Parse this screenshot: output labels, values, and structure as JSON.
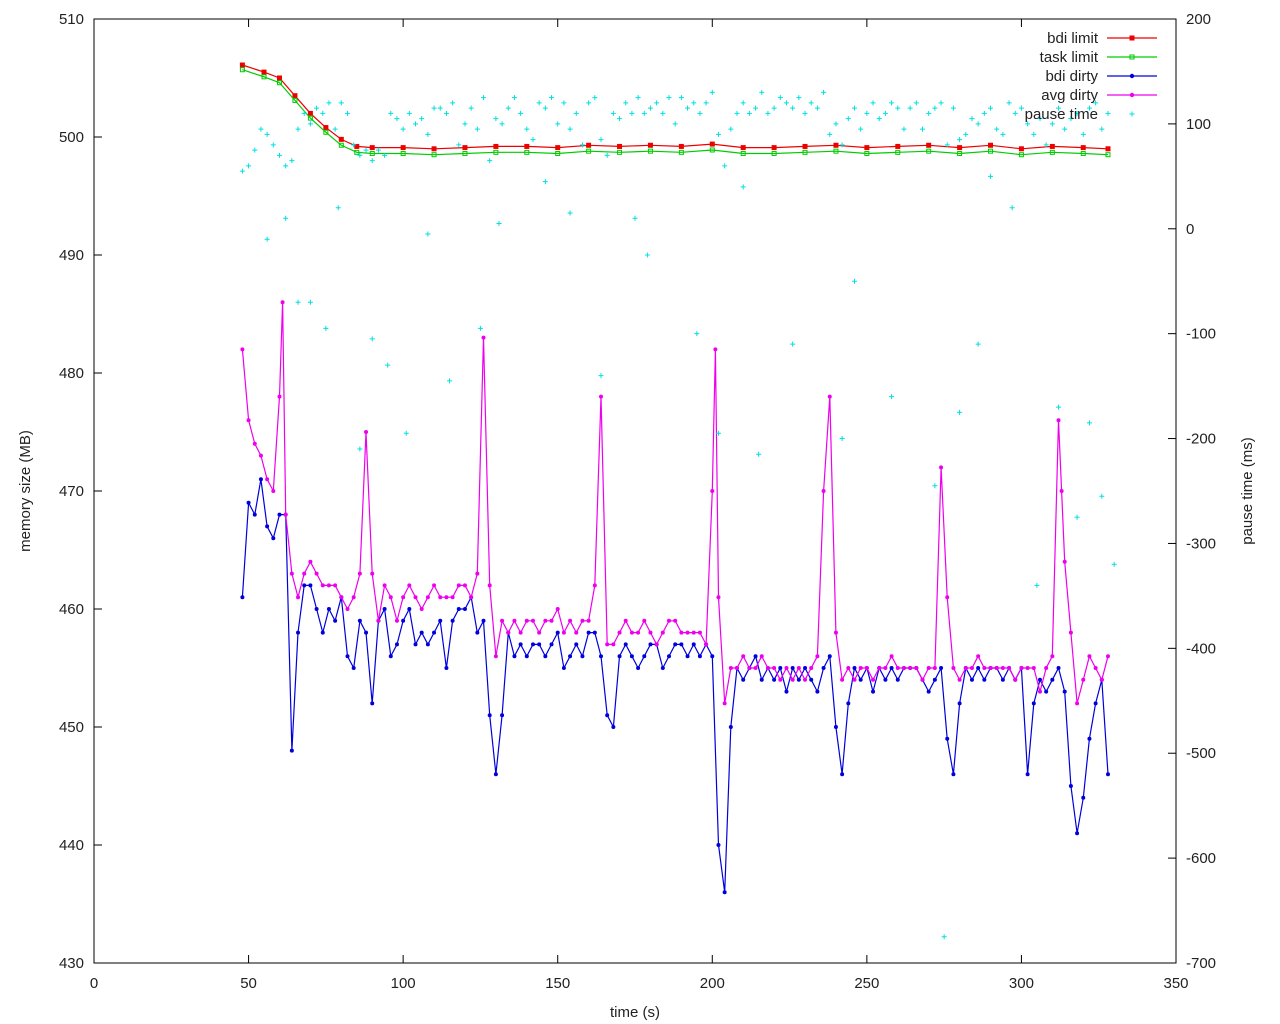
{
  "chart_data": {
    "type": "line",
    "title": "",
    "xlabel": "time (s)",
    "ylabel": "memory size (MB)",
    "y2label": "pause time (ms)",
    "xlim": [
      0,
      350
    ],
    "ylim": [
      430,
      510
    ],
    "y2lim": [
      -700,
      200
    ],
    "x_ticks": [
      "0",
      "50",
      "100",
      "150",
      "200",
      "250",
      "300",
      "350"
    ],
    "y_ticks": [
      "430",
      "440",
      "450",
      "460",
      "470",
      "480",
      "490",
      "500",
      "510"
    ],
    "y2_ticks": [
      "-700",
      "-600",
      "-500",
      "-400",
      "-300",
      "-200",
      "-100",
      "0",
      "100",
      "200"
    ],
    "grid": false,
    "legend_position": "top-right",
    "legend": [
      "bdi limit",
      "task limit",
      "bdi dirty",
      "avg dirty",
      "pause time"
    ],
    "series": [
      {
        "name": "bdi limit",
        "axis": "left",
        "style": "linespoints",
        "color": "#ee0000",
        "x": [
          48,
          55,
          60,
          65,
          70,
          75,
          80,
          85,
          90,
          100,
          110,
          120,
          130,
          140,
          150,
          160,
          170,
          180,
          190,
          200,
          210,
          220,
          230,
          240,
          250,
          260,
          270,
          280,
          290,
          300,
          310,
          320,
          328
        ],
        "values": [
          506.1,
          505.5,
          505.0,
          503.5,
          502.0,
          500.8,
          499.8,
          499.2,
          499.1,
          499.1,
          499.0,
          499.1,
          499.2,
          499.2,
          499.1,
          499.3,
          499.2,
          499.3,
          499.2,
          499.4,
          499.1,
          499.1,
          499.2,
          499.3,
          499.1,
          499.2,
          499.3,
          499.1,
          499.3,
          499.0,
          499.2,
          499.1,
          499.0
        ]
      },
      {
        "name": "task limit",
        "axis": "left",
        "style": "linespoints",
        "color": "#00cc00",
        "x": [
          48,
          55,
          60,
          65,
          70,
          75,
          80,
          85,
          90,
          100,
          110,
          120,
          130,
          140,
          150,
          160,
          170,
          180,
          190,
          200,
          210,
          220,
          230,
          240,
          250,
          260,
          270,
          280,
          290,
          300,
          310,
          320,
          328
        ],
        "values": [
          505.7,
          505.1,
          504.6,
          503.1,
          501.6,
          500.4,
          499.3,
          498.7,
          498.6,
          498.6,
          498.5,
          498.6,
          498.7,
          498.7,
          498.6,
          498.8,
          498.7,
          498.8,
          498.7,
          498.9,
          498.6,
          498.6,
          498.7,
          498.8,
          498.6,
          498.7,
          498.8,
          498.6,
          498.8,
          498.5,
          498.7,
          498.6,
          498.5
        ]
      },
      {
        "name": "bdi dirty",
        "axis": "left",
        "style": "linespoints",
        "color": "#0000dd",
        "x": [
          48,
          50,
          52,
          54,
          56,
          58,
          60,
          62,
          64,
          66,
          68,
          70,
          72,
          74,
          76,
          78,
          80,
          82,
          84,
          86,
          88,
          90,
          92,
          94,
          96,
          98,
          100,
          102,
          104,
          106,
          108,
          110,
          112,
          114,
          116,
          118,
          120,
          122,
          124,
          126,
          128,
          130,
          132,
          134,
          136,
          138,
          140,
          142,
          144,
          146,
          148,
          150,
          152,
          154,
          156,
          158,
          160,
          162,
          164,
          166,
          168,
          170,
          172,
          174,
          176,
          178,
          180,
          182,
          184,
          186,
          188,
          190,
          192,
          194,
          196,
          198,
          200,
          202,
          204,
          206,
          208,
          210,
          212,
          214,
          216,
          218,
          220,
          222,
          224,
          226,
          228,
          230,
          232,
          234,
          236,
          238,
          240,
          242,
          244,
          246,
          248,
          250,
          252,
          254,
          256,
          258,
          260,
          262,
          264,
          266,
          268,
          270,
          272,
          274,
          276,
          278,
          280,
          282,
          284,
          286,
          288,
          290,
          292,
          294,
          296,
          298,
          300,
          302,
          304,
          306,
          308,
          310,
          312,
          314,
          316,
          318,
          320,
          322,
          324,
          326,
          328
        ],
        "values": [
          461,
          469,
          468,
          471,
          467,
          466,
          468,
          468,
          448,
          458,
          462,
          462,
          460,
          458,
          460,
          459,
          461,
          456,
          455,
          459,
          458,
          452,
          459,
          460,
          456,
          457,
          459,
          460,
          457,
          458,
          457,
          458,
          459,
          455,
          459,
          460,
          460,
          461,
          458,
          459,
          451,
          446,
          451,
          458,
          456,
          457,
          456,
          457,
          457,
          456,
          457,
          458,
          455,
          456,
          457,
          456,
          458,
          458,
          456,
          451,
          450,
          456,
          457,
          456,
          455,
          456,
          457,
          457,
          455,
          456,
          457,
          457,
          456,
          457,
          456,
          457,
          456,
          440,
          436,
          450,
          455,
          454,
          455,
          456,
          454,
          455,
          454,
          455,
          453,
          455,
          454,
          455,
          454,
          453,
          455,
          456,
          450,
          446,
          452,
          455,
          454,
          455,
          453,
          455,
          454,
          455,
          454,
          455,
          455,
          455,
          454,
          453,
          454,
          455,
          449,
          446,
          452,
          455,
          454,
          455,
          454,
          455,
          455,
          454,
          455,
          454,
          455,
          446,
          452,
          454,
          453,
          454,
          455,
          453,
          445,
          441,
          444,
          449,
          452,
          454,
          446
        ]
      },
      {
        "name": "avg dirty",
        "axis": "left",
        "style": "linespoints",
        "color": "#ee00ee",
        "x": [
          48,
          50,
          52,
          54,
          56,
          58,
          60,
          61,
          62,
          64,
          66,
          68,
          70,
          72,
          74,
          76,
          78,
          80,
          82,
          84,
          86,
          88,
          90,
          92,
          94,
          96,
          98,
          100,
          102,
          104,
          106,
          108,
          110,
          112,
          114,
          116,
          118,
          120,
          122,
          124,
          126,
          128,
          130,
          132,
          134,
          136,
          138,
          140,
          142,
          144,
          146,
          148,
          150,
          152,
          154,
          156,
          158,
          160,
          162,
          164,
          166,
          168,
          170,
          172,
          174,
          176,
          178,
          180,
          182,
          184,
          186,
          188,
          190,
          192,
          194,
          196,
          198,
          200,
          201,
          202,
          204,
          206,
          208,
          210,
          212,
          214,
          216,
          218,
          220,
          222,
          224,
          226,
          228,
          230,
          232,
          234,
          236,
          238,
          240,
          242,
          244,
          246,
          248,
          250,
          252,
          254,
          256,
          258,
          260,
          262,
          264,
          266,
          268,
          270,
          272,
          274,
          276,
          278,
          280,
          282,
          284,
          286,
          288,
          290,
          292,
          294,
          296,
          298,
          300,
          302,
          304,
          306,
          308,
          310,
          312,
          313,
          314,
          316,
          318,
          320,
          322,
          324,
          326,
          328
        ],
        "values": [
          482,
          476,
          474,
          473,
          471,
          470,
          478,
          486,
          468,
          463,
          461,
          463,
          464,
          463,
          462,
          462,
          462,
          461,
          460,
          461,
          463,
          475,
          463,
          459,
          462,
          461,
          459,
          461,
          462,
          461,
          460,
          461,
          462,
          461,
          461,
          461,
          462,
          462,
          461,
          463,
          483,
          462,
          456,
          459,
          458,
          459,
          458,
          459,
          459,
          458,
          459,
          459,
          460,
          458,
          459,
          458,
          459,
          459,
          462,
          478,
          457,
          457,
          458,
          459,
          458,
          458,
          459,
          458,
          457,
          458,
          459,
          459,
          458,
          458,
          458,
          458,
          457,
          470,
          482,
          461,
          452,
          455,
          455,
          456,
          455,
          455,
          456,
          455,
          455,
          454,
          455,
          454,
          455,
          454,
          455,
          456,
          470,
          478,
          458,
          454,
          455,
          454,
          455,
          455,
          454,
          455,
          455,
          456,
          455,
          455,
          455,
          455,
          454,
          455,
          455,
          472,
          461,
          455,
          454,
          455,
          455,
          456,
          455,
          455,
          455,
          455,
          455,
          454,
          455,
          455,
          455,
          453,
          455,
          456,
          476,
          470,
          464,
          458,
          452,
          454,
          456,
          455,
          454,
          456
        ]
      },
      {
        "name": "pause time",
        "axis": "right",
        "style": "points",
        "color": "#00e0e0",
        "x": [
          48,
          50,
          52,
          54,
          56,
          58,
          60,
          62,
          64,
          66,
          68,
          70,
          72,
          74,
          76,
          78,
          80,
          82,
          84,
          86,
          88,
          90,
          92,
          94,
          96,
          98,
          100,
          102,
          104,
          106,
          108,
          110,
          112,
          114,
          116,
          118,
          120,
          122,
          124,
          126,
          128,
          130,
          132,
          134,
          136,
          138,
          140,
          142,
          144,
          146,
          148,
          150,
          152,
          154,
          156,
          158,
          160,
          162,
          164,
          166,
          168,
          170,
          172,
          174,
          176,
          178,
          180,
          182,
          184,
          186,
          188,
          190,
          192,
          194,
          196,
          198,
          200,
          202,
          204,
          206,
          208,
          210,
          212,
          214,
          216,
          218,
          220,
          222,
          224,
          226,
          228,
          230,
          232,
          234,
          236,
          238,
          240,
          242,
          244,
          246,
          248,
          250,
          252,
          254,
          256,
          258,
          260,
          262,
          264,
          266,
          268,
          270,
          272,
          274,
          276,
          278,
          280,
          282,
          284,
          286,
          288,
          290,
          292,
          294,
          296,
          298,
          300,
          302,
          304,
          306,
          308,
          310,
          312,
          314,
          316,
          318,
          320,
          322,
          324,
          326,
          328,
          56,
          62,
          66,
          70,
          75,
          79,
          86,
          90,
          95,
          101,
          108,
          115,
          125,
          131,
          146,
          154,
          164,
          175,
          179,
          195,
          202,
          210,
          215,
          226,
          242,
          246,
          258,
          272,
          275,
          280,
          286,
          290,
          297,
          305,
          312,
          318,
          322,
          326,
          330
        ],
        "values": [
          55,
          60,
          75,
          95,
          90,
          80,
          70,
          60,
          65,
          95,
          110,
          100,
          115,
          110,
          120,
          95,
          120,
          110,
          80,
          70,
          75,
          65,
          75,
          70,
          110,
          105,
          95,
          110,
          100,
          105,
          90,
          115,
          115,
          110,
          120,
          80,
          100,
          115,
          95,
          125,
          65,
          105,
          100,
          115,
          125,
          110,
          95,
          85,
          120,
          115,
          125,
          100,
          120,
          95,
          110,
          80,
          120,
          125,
          85,
          70,
          110,
          105,
          120,
          110,
          125,
          110,
          115,
          120,
          110,
          125,
          100,
          125,
          115,
          120,
          110,
          120,
          130,
          90,
          60,
          95,
          110,
          120,
          110,
          115,
          130,
          110,
          115,
          125,
          120,
          115,
          125,
          110,
          120,
          115,
          130,
          90,
          100,
          80,
          105,
          115,
          95,
          110,
          120,
          105,
          110,
          120,
          115,
          95,
          115,
          120,
          95,
          110,
          115,
          120,
          80,
          115,
          85,
          90,
          105,
          100,
          110,
          115,
          95,
          90,
          120,
          110,
          115,
          100,
          90,
          105,
          80,
          100,
          115,
          95,
          105,
          110,
          90,
          115,
          120,
          95,
          110,
          -10,
          10,
          -70,
          -70,
          -95,
          20,
          -210,
          -105,
          -130,
          -195,
          -5,
          -145,
          -95,
          5,
          45,
          15,
          -140,
          10,
          -25,
          -100,
          -195,
          40,
          -215,
          -110,
          -200,
          -50,
          -160,
          -245,
          -675,
          -175,
          -110,
          50,
          20,
          -340,
          -170,
          -275,
          -185,
          -255,
          -320
        ]
      }
    ]
  }
}
